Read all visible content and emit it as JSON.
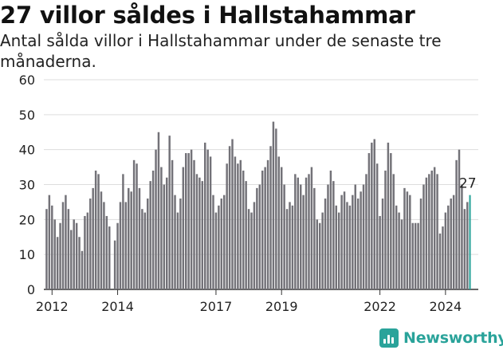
{
  "header": {
    "title": "27 villor såldes i Hallstahammar",
    "subtitle": "Antal sålda villor i Hallstahammar under de senaste tre månaderna."
  },
  "brand": {
    "name": "Newsworthy",
    "color": "#2aa39a"
  },
  "colors": {
    "bar": "#737278",
    "highlight": "#2aa39a",
    "grid": "#dddddd",
    "axis": "#333333"
  },
  "chart_data": {
    "type": "bar",
    "title": "27 villor såldes i Hallstahammar",
    "subtitle": "Antal sålda villor i Hallstahammar under de senaste tre månaderna.",
    "x_start": "2011-10",
    "x_end": "2025-01",
    "x_ticks": [
      {
        "label": "2012",
        "x": "2012-01"
      },
      {
        "label": "2014",
        "x": "2014-01"
      },
      {
        "label": "2017",
        "x": "2017-01"
      },
      {
        "label": "2019",
        "x": "2019-01"
      },
      {
        "label": "2022",
        "x": "2022-01"
      },
      {
        "label": "2024",
        "x": "2024-01"
      }
    ],
    "ylim": [
      0,
      60
    ],
    "yticks": [
      0,
      10,
      20,
      30,
      40,
      50,
      60
    ],
    "grid": true,
    "highlight_label": "27",
    "series": [
      {
        "start": "2011-11",
        "values": [
          23,
          27,
          24,
          20,
          15,
          19,
          25,
          27,
          23,
          17,
          20,
          19,
          15,
          11,
          21,
          22,
          26,
          29,
          34,
          33,
          28,
          25,
          21,
          18,
          0,
          14,
          19,
          25,
          33,
          25,
          29,
          28,
          37,
          36,
          29,
          23,
          22,
          26,
          31,
          34,
          40,
          45,
          35,
          30,
          32,
          44,
          37,
          27,
          22,
          26,
          35,
          39,
          39,
          40,
          37,
          33,
          32,
          31,
          42,
          40,
          38,
          27,
          22,
          24,
          26,
          27,
          36,
          41,
          43,
          38,
          36,
          37,
          34,
          31,
          23,
          22,
          25,
          29,
          30,
          34,
          35,
          37,
          41,
          48,
          46,
          38,
          35,
          30,
          23,
          25,
          24,
          33,
          32,
          30,
          27,
          32,
          33,
          35,
          29,
          20,
          19,
          22,
          26,
          30,
          34,
          31,
          24,
          22,
          27,
          28,
          25,
          24,
          27,
          30,
          26,
          28,
          30,
          33,
          39,
          42,
          43,
          36,
          21,
          26,
          34,
          42,
          39,
          33,
          24,
          22,
          20,
          29,
          28,
          27,
          19,
          19,
          19,
          26,
          30,
          32,
          33,
          34,
          35,
          33,
          16,
          18,
          22,
          24,
          26,
          27,
          37,
          40,
          30,
          23,
          25,
          27
        ]
      }
    ]
  }
}
